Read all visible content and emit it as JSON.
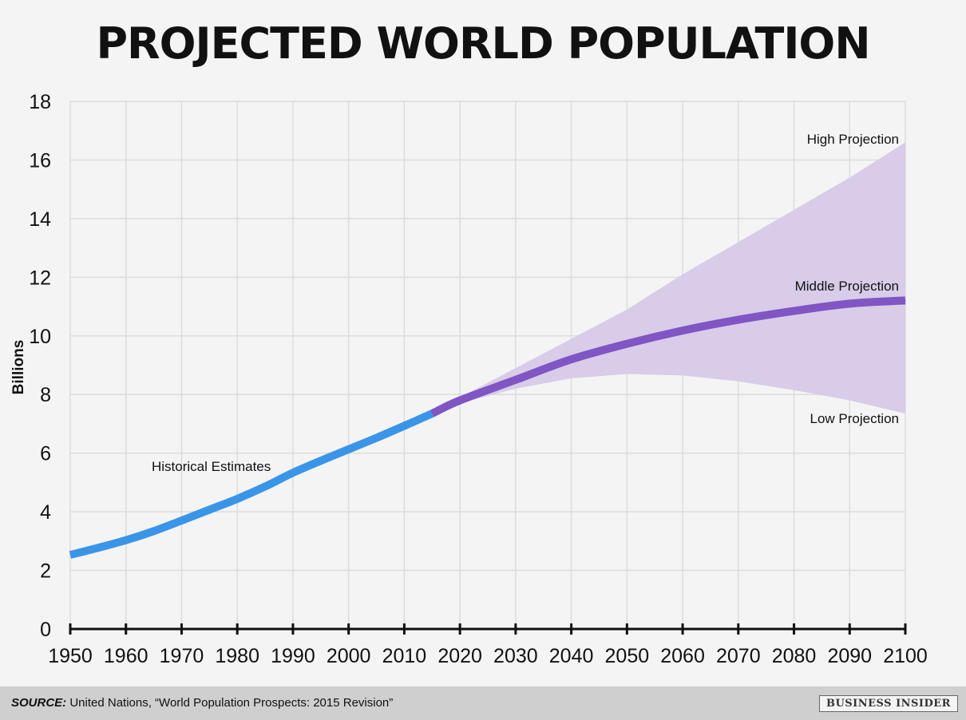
{
  "chart_data": {
    "type": "line",
    "title": "PROJECTED WORLD POPULATION",
    "xlabel": "",
    "ylabel": "Billions",
    "xlim": [
      1950,
      2100
    ],
    "ylim": [
      0,
      18
    ],
    "x_ticks": [
      1950,
      1960,
      1970,
      1980,
      1990,
      2000,
      2010,
      2020,
      2030,
      2040,
      2050,
      2060,
      2070,
      2080,
      2090,
      2100
    ],
    "y_ticks": [
      0,
      2,
      4,
      6,
      8,
      10,
      12,
      14,
      16,
      18
    ],
    "grid": true,
    "series": [
      {
        "name": "Historical Estimates",
        "color": "#3a95e8",
        "x": [
          1950,
          1955,
          1960,
          1965,
          1970,
          1975,
          1980,
          1985,
          1990,
          1995,
          2000,
          2005,
          2010,
          2015
        ],
        "values": [
          2.53,
          2.77,
          3.03,
          3.34,
          3.7,
          4.07,
          4.44,
          4.86,
          5.33,
          5.74,
          6.13,
          6.52,
          6.93,
          7.35
        ]
      },
      {
        "name": "Middle Projection",
        "color": "#8055c4",
        "x": [
          2015,
          2020,
          2030,
          2040,
          2050,
          2060,
          2070,
          2080,
          2090,
          2100
        ],
        "values": [
          7.35,
          7.8,
          8.5,
          9.2,
          9.73,
          10.18,
          10.55,
          10.85,
          11.1,
          11.21
        ]
      }
    ],
    "band": {
      "name": "Projection range",
      "color": "#d8cce8",
      "x": [
        2015,
        2020,
        2030,
        2040,
        2050,
        2060,
        2070,
        2080,
        2090,
        2100
      ],
      "high": [
        7.35,
        7.9,
        8.9,
        9.9,
        10.9,
        12.1,
        13.2,
        14.3,
        15.4,
        16.6
      ],
      "low": [
        7.35,
        7.7,
        8.2,
        8.55,
        8.7,
        8.65,
        8.45,
        8.15,
        7.8,
        7.35
      ]
    },
    "annotations": {
      "high": "High Projection",
      "middle": "Middle Projection",
      "low": "Low Projection",
      "historical": "Historical Estimates"
    }
  },
  "footer": {
    "source_label": "SOURCE:",
    "source_text": " United Nations, “World Population Prospects: 2015 Revision”",
    "brand": "BUSINESS INSIDER"
  }
}
